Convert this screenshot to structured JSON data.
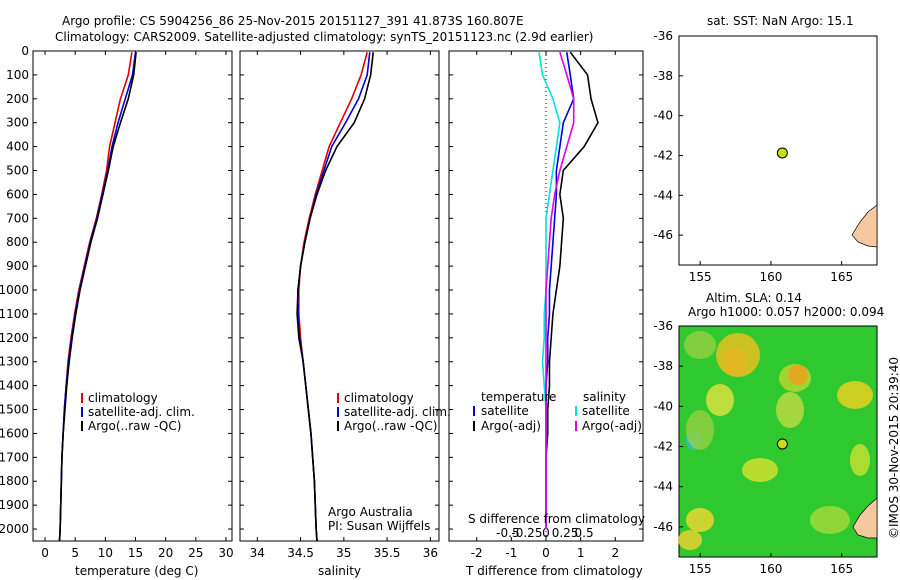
{
  "header": {
    "title_line1": "Argo profile: CS 5904256_86 25-Nov-2015 20151127_391 41.873S 160.807E",
    "title_line2": "Climatology: CARS2009. Satellite-adjusted climatology: synTS_20151123.nc (2.9d earlier)"
  },
  "colors": {
    "climatology": "#e00000",
    "satellite": "#0000e0",
    "argo": "#000000",
    "sat_salinity": "#00e0e0",
    "argo_salinity": "#e000e0"
  },
  "panels": {
    "temperature": {
      "xlabel": "temperature (deg C)",
      "legend": [
        "climatology",
        "satellite-adj. clim.",
        "Argo(..raw -QC)"
      ]
    },
    "salinity": {
      "xlabel": "salinity",
      "legend": [
        "climatology",
        "satellite-adj. clim.",
        "Argo(..raw -QC)"
      ],
      "credit_line1": "Argo Australia",
      "credit_line2": "PI: Susan Wijffels"
    },
    "difference": {
      "xlabel": "T difference from climatology",
      "top_label": "S difference from climatology",
      "legend_temp_title": "temperature",
      "legend_sal_title": "salinity",
      "legend_temp": [
        "satellite",
        "Argo(-adj)"
      ],
      "legend_sal": [
        "satellite",
        "Argo(-adj)"
      ]
    },
    "sst_map": {
      "title": "sat. SST: NaN Argo: 15.1"
    },
    "sla_map": {
      "title_line1": "Altim. SLA: 0.14",
      "title_line2": "Argo h1000: 0.057 h2000: 0.094"
    },
    "stamp": "©IMOS 30-Nov-2015 20:39:40"
  },
  "chart_data": [
    {
      "type": "line",
      "title": "",
      "xlabel": "temperature (deg C)",
      "ylabel": "",
      "xlim": [
        -2,
        31
      ],
      "ylim": [
        2050,
        0
      ],
      "y_reversed": true,
      "xticks": [
        0,
        5,
        10,
        15,
        20,
        25,
        30
      ],
      "yticks": [
        0,
        100,
        200,
        300,
        400,
        500,
        600,
        700,
        800,
        900,
        1000,
        1100,
        1200,
        1300,
        1400,
        1500,
        1600,
        1700,
        1800,
        1900,
        2000
      ],
      "series": [
        {
          "name": "climatology",
          "x": [
            14.4,
            13.8,
            12.5,
            11.6,
            10.7,
            10.2,
            9.4,
            8.5,
            7.4,
            6.5,
            5.6,
            4.9,
            4.3,
            3.8,
            3.5,
            3.2,
            3.0,
            2.8,
            2.7,
            2.6,
            2.5,
            2.4
          ],
          "y": [
            5,
            100,
            200,
            300,
            400,
            500,
            600,
            700,
            800,
            900,
            1000,
            1100,
            1200,
            1300,
            1400,
            1500,
            1600,
            1700,
            1800,
            1900,
            2000,
            2050
          ]
        },
        {
          "name": "satellite-adj. clim.",
          "x": [
            15.0,
            14.5,
            13.3,
            12.1,
            11.1,
            10.4,
            9.5,
            8.6,
            7.5,
            6.6,
            5.7,
            5.0,
            4.4,
            3.9,
            3.5,
            3.2,
            3.0,
            2.8,
            2.7,
            2.6,
            2.5,
            2.4
          ],
          "y": [
            5,
            100,
            200,
            300,
            400,
            500,
            600,
            700,
            800,
            900,
            1000,
            1100,
            1200,
            1300,
            1400,
            1500,
            1600,
            1700,
            1800,
            1900,
            2000,
            2050
          ]
        },
        {
          "name": "Argo(..raw -QC)",
          "x": [
            15.1,
            14.7,
            13.8,
            12.5,
            11.3,
            10.5,
            9.6,
            8.7,
            7.6,
            6.7,
            5.8,
            5.1,
            4.5,
            4.0,
            3.6,
            3.3,
            3.0,
            2.8,
            2.7,
            2.6,
            2.5,
            2.4
          ],
          "y": [
            5,
            100,
            200,
            300,
            400,
            500,
            600,
            700,
            800,
            900,
            1000,
            1100,
            1200,
            1300,
            1400,
            1500,
            1600,
            1700,
            1800,
            1900,
            2000,
            2050
          ]
        }
      ]
    },
    {
      "type": "line",
      "title": "",
      "xlabel": "salinity",
      "ylabel": "",
      "xlim": [
        33.8,
        36.1
      ],
      "ylim": [
        2050,
        0
      ],
      "y_reversed": true,
      "xticks": [
        34,
        34.5,
        35,
        35.5,
        36
      ],
      "series": [
        {
          "name": "climatology",
          "x": [
            35.27,
            35.2,
            35.09,
            34.96,
            34.83,
            34.75,
            34.67,
            34.6,
            34.54,
            34.5,
            34.48,
            34.48,
            34.5,
            34.53,
            34.56,
            34.59,
            34.62,
            34.64,
            34.66,
            34.67,
            34.68,
            34.69
          ],
          "y": [
            5,
            100,
            200,
            300,
            400,
            500,
            600,
            700,
            800,
            900,
            1000,
            1100,
            1200,
            1300,
            1400,
            1500,
            1600,
            1700,
            1800,
            1900,
            2000,
            2050
          ]
        },
        {
          "name": "satellite-adj. clim.",
          "x": [
            35.3,
            35.27,
            35.17,
            35.02,
            34.86,
            34.77,
            34.68,
            34.61,
            34.55,
            34.5,
            34.47,
            34.47,
            34.49,
            34.53,
            34.56,
            34.59,
            34.62,
            34.64,
            34.66,
            34.67,
            34.68,
            34.69
          ],
          "y": [
            5,
            100,
            200,
            300,
            400,
            500,
            600,
            700,
            800,
            900,
            1000,
            1100,
            1200,
            1300,
            1400,
            1500,
            1600,
            1700,
            1800,
            1900,
            2000,
            2050
          ]
        },
        {
          "name": "Argo(..raw -QC)",
          "x": [
            35.34,
            35.31,
            35.24,
            35.12,
            34.92,
            34.79,
            34.69,
            34.61,
            34.55,
            34.5,
            34.47,
            34.46,
            34.48,
            34.53,
            34.56,
            34.59,
            34.62,
            34.64,
            34.66,
            34.67,
            34.68,
            34.69
          ],
          "y": [
            5,
            100,
            200,
            300,
            400,
            500,
            600,
            700,
            800,
            900,
            1000,
            1100,
            1200,
            1300,
            1400,
            1500,
            1600,
            1700,
            1800,
            1900,
            2000,
            2050
          ]
        }
      ]
    },
    {
      "type": "line",
      "title": "",
      "xlabel": "T difference from climatology",
      "ylabel": "",
      "xlim": [
        -2.8,
        2.8
      ],
      "ylim": [
        2050,
        0
      ],
      "y_reversed": true,
      "xticks": [
        -2,
        -1,
        0,
        1,
        2
      ],
      "secondary_xlabel": "S difference from climatology",
      "secondary_xticks": [
        "-0.5",
        "-0.25",
        "0",
        "0.25",
        "0.5"
      ],
      "series": [
        {
          "name": "temperature satellite",
          "x": [
            0.6,
            0.7,
            0.8,
            0.5,
            0.4,
            0.3,
            0.3,
            0.25,
            0.2,
            0.15,
            0.1,
            0.1,
            0.05,
            0.05,
            0.0,
            0.0,
            0.0,
            0.0,
            0.0,
            0.0,
            0.0
          ],
          "y": [
            5,
            100,
            200,
            300,
            400,
            500,
            600,
            700,
            800,
            900,
            1000,
            1100,
            1200,
            1300,
            1400,
            1500,
            1600,
            1700,
            1800,
            1900,
            2000
          ]
        },
        {
          "name": "temperature Argo(-adj)",
          "x": [
            0.7,
            1.2,
            1.3,
            1.5,
            1.1,
            0.5,
            0.4,
            0.5,
            0.45,
            0.4,
            0.3,
            0.2,
            0.15,
            0.1,
            0.1,
            0.05,
            0.05,
            0.0,
            0.0,
            0.0,
            0.0
          ],
          "y": [
            5,
            100,
            200,
            300,
            400,
            500,
            600,
            700,
            800,
            900,
            1000,
            1100,
            1200,
            1300,
            1400,
            1500,
            1600,
            1700,
            1800,
            1900,
            2000
          ]
        },
        {
          "name": "salinity satellite",
          "x": [
            -0.2,
            -0.1,
            0.2,
            0.4,
            0.3,
            0.2,
            0.1,
            0.0,
            0.0,
            0.0,
            0.0,
            -0.05,
            -0.05,
            -0.1,
            -0.05,
            0.0,
            0.0,
            0.0,
            0.0,
            0.0,
            0.0
          ],
          "y": [
            5,
            100,
            200,
            300,
            400,
            500,
            600,
            700,
            800,
            900,
            1000,
            1100,
            1200,
            1300,
            1400,
            1500,
            1600,
            1700,
            1800,
            1900,
            2000
          ]
        },
        {
          "name": "salinity Argo(-adj)",
          "x": [
            0.4,
            0.6,
            0.8,
            0.8,
            0.6,
            0.4,
            0.25,
            0.15,
            0.1,
            0.05,
            0.0,
            0.0,
            0.0,
            0.0,
            0.0,
            0.0,
            0.0,
            0.0,
            0.0,
            0.0,
            0.0
          ],
          "y": [
            5,
            100,
            200,
            300,
            400,
            500,
            600,
            700,
            800,
            900,
            1000,
            1100,
            1200,
            1300,
            1400,
            1500,
            1600,
            1700,
            1800,
            1900,
            2000
          ]
        }
      ]
    },
    {
      "type": "scatter",
      "title": "sat. SST: NaN Argo: 15.1",
      "xlim": [
        153.5,
        167.5
      ],
      "ylim": [
        -47.5,
        -36
      ],
      "xticks": [
        155,
        160,
        165
      ],
      "yticks": [
        -36,
        -38,
        -40,
        -42,
        -44,
        -46
      ],
      "points": [
        {
          "x": 160.807,
          "y": -41.873
        }
      ]
    },
    {
      "type": "heatmap",
      "title": "Altim. SLA: 0.14",
      "xlim": [
        153.5,
        167.5
      ],
      "ylim": [
        -47.5,
        -36
      ],
      "xticks": [
        155,
        160,
        165
      ],
      "yticks": [
        -36,
        -38,
        -40,
        -42,
        -44,
        -46
      ],
      "points": [
        {
          "x": 160.807,
          "y": -41.873
        }
      ]
    }
  ]
}
